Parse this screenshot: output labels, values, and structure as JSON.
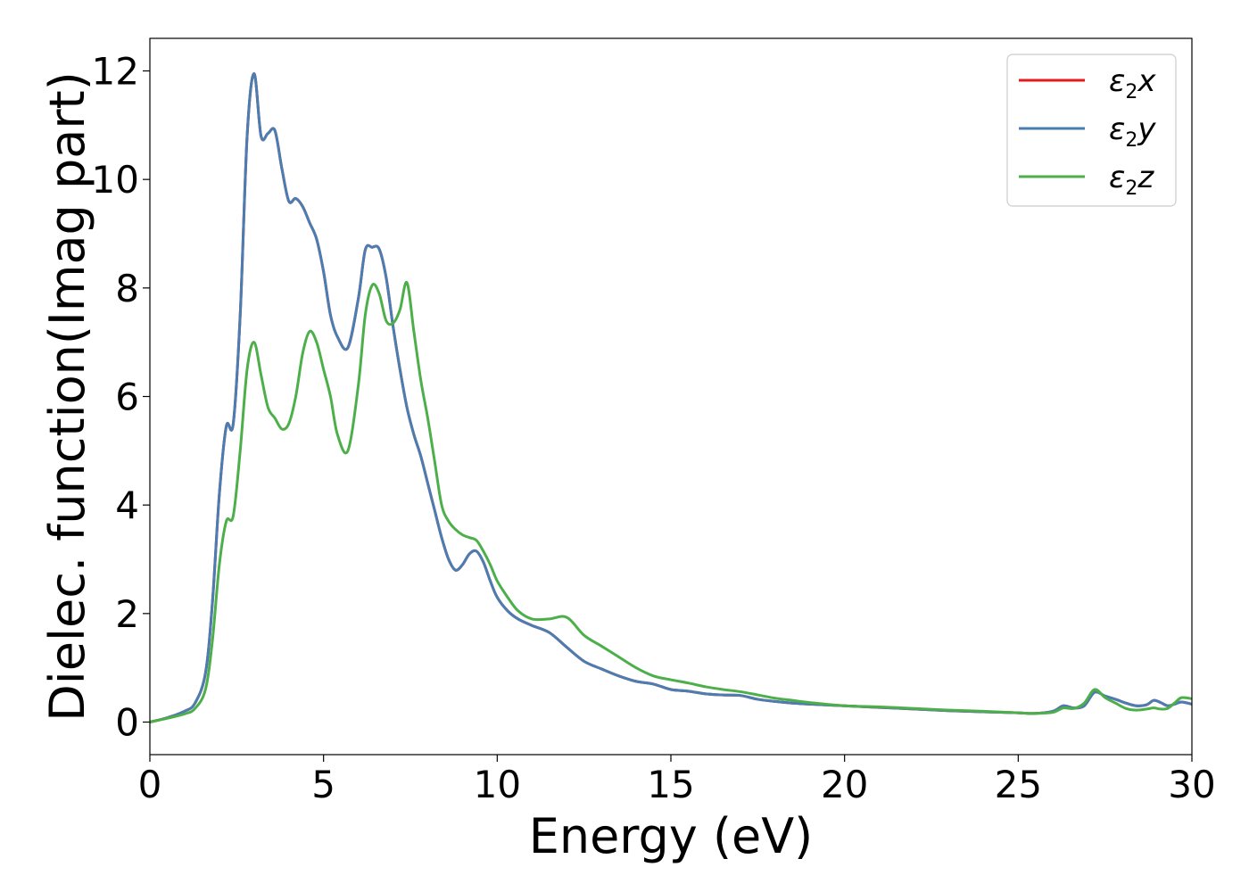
{
  "chart_data": {
    "type": "line",
    "xlabel": "Energy (eV)",
    "ylabel": "Dielec. function(Imag part)",
    "xlim": [
      0,
      30
    ],
    "ylim": [
      -0.6,
      12.6
    ],
    "xticks": [
      0,
      5,
      10,
      15,
      20,
      25,
      30
    ],
    "yticks": [
      0,
      2,
      4,
      6,
      8,
      10,
      12
    ],
    "grid": false,
    "legend_position": "top-right",
    "series": [
      {
        "name": "x",
        "legend_symbol": "ε",
        "legend_subscript": "2",
        "color": "#e41a1c",
        "x": [
          0,
          0.5,
          1.0,
          1.3,
          1.6,
          1.8,
          2.0,
          2.2,
          2.4,
          2.6,
          2.8,
          3.0,
          3.2,
          3.4,
          3.6,
          3.8,
          4.0,
          4.2,
          4.4,
          4.6,
          4.8,
          5.0,
          5.2,
          5.4,
          5.7,
          6.0,
          6.2,
          6.4,
          6.6,
          6.8,
          7.0,
          7.2,
          7.4,
          7.6,
          7.8,
          8.0,
          8.2,
          8.4,
          8.6,
          8.8,
          9.0,
          9.2,
          9.4,
          9.6,
          9.8,
          10.0,
          10.3,
          10.6,
          11.0,
          11.5,
          12.0,
          12.5,
          13.0,
          13.5,
          14.0,
          14.5,
          15.0,
          15.5,
          16.0,
          16.5,
          17.0,
          17.5,
          18.0,
          18.5,
          19.0,
          20.0,
          21.0,
          22.0,
          23.0,
          24.0,
          25.0,
          25.5,
          26.0,
          26.3,
          26.6,
          26.9,
          27.2,
          27.5,
          27.8,
          28.1,
          28.4,
          28.7,
          28.9,
          29.1,
          29.3,
          29.5,
          29.7,
          30.0
        ],
        "values": [
          0,
          0.08,
          0.2,
          0.35,
          0.9,
          2.2,
          4.2,
          5.45,
          5.5,
          7.5,
          10.8,
          11.95,
          10.8,
          10.85,
          10.9,
          10.2,
          9.6,
          9.65,
          9.5,
          9.2,
          8.9,
          8.3,
          7.5,
          7.1,
          6.9,
          7.8,
          8.7,
          8.75,
          8.72,
          8.2,
          7.3,
          6.5,
          5.8,
          5.3,
          4.9,
          4.4,
          3.9,
          3.4,
          3.0,
          2.8,
          2.9,
          3.1,
          3.15,
          2.95,
          2.6,
          2.3,
          2.05,
          1.9,
          1.78,
          1.65,
          1.38,
          1.12,
          0.98,
          0.85,
          0.75,
          0.7,
          0.6,
          0.57,
          0.52,
          0.5,
          0.49,
          0.42,
          0.38,
          0.35,
          0.33,
          0.3,
          0.27,
          0.24,
          0.21,
          0.19,
          0.17,
          0.16,
          0.2,
          0.3,
          0.26,
          0.3,
          0.55,
          0.48,
          0.42,
          0.35,
          0.3,
          0.32,
          0.4,
          0.36,
          0.3,
          0.33,
          0.37,
          0.33
        ]
      },
      {
        "name": "y",
        "legend_symbol": "ε",
        "legend_subscript": "2",
        "color": "#4a7db1",
        "x": [
          0,
          0.5,
          1.0,
          1.3,
          1.6,
          1.8,
          2.0,
          2.2,
          2.4,
          2.6,
          2.8,
          3.0,
          3.2,
          3.4,
          3.6,
          3.8,
          4.0,
          4.2,
          4.4,
          4.6,
          4.8,
          5.0,
          5.2,
          5.4,
          5.7,
          6.0,
          6.2,
          6.4,
          6.6,
          6.8,
          7.0,
          7.2,
          7.4,
          7.6,
          7.8,
          8.0,
          8.2,
          8.4,
          8.6,
          8.8,
          9.0,
          9.2,
          9.4,
          9.6,
          9.8,
          10.0,
          10.3,
          10.6,
          11.0,
          11.5,
          12.0,
          12.5,
          13.0,
          13.5,
          14.0,
          14.5,
          15.0,
          15.5,
          16.0,
          16.5,
          17.0,
          17.5,
          18.0,
          18.5,
          19.0,
          20.0,
          21.0,
          22.0,
          23.0,
          24.0,
          25.0,
          25.5,
          26.0,
          26.3,
          26.6,
          26.9,
          27.2,
          27.5,
          27.8,
          28.1,
          28.4,
          28.7,
          28.9,
          29.1,
          29.3,
          29.5,
          29.7,
          30.0
        ],
        "values": [
          0,
          0.08,
          0.2,
          0.35,
          0.9,
          2.2,
          4.2,
          5.45,
          5.5,
          7.5,
          10.8,
          11.95,
          10.8,
          10.85,
          10.9,
          10.2,
          9.6,
          9.65,
          9.5,
          9.2,
          8.9,
          8.3,
          7.5,
          7.1,
          6.9,
          7.8,
          8.7,
          8.75,
          8.72,
          8.2,
          7.3,
          6.5,
          5.8,
          5.3,
          4.9,
          4.4,
          3.9,
          3.4,
          3.0,
          2.8,
          2.9,
          3.1,
          3.15,
          2.95,
          2.6,
          2.3,
          2.05,
          1.9,
          1.78,
          1.65,
          1.38,
          1.12,
          0.98,
          0.85,
          0.75,
          0.7,
          0.6,
          0.57,
          0.52,
          0.5,
          0.49,
          0.42,
          0.38,
          0.35,
          0.33,
          0.3,
          0.27,
          0.24,
          0.21,
          0.19,
          0.17,
          0.16,
          0.2,
          0.3,
          0.26,
          0.3,
          0.55,
          0.48,
          0.42,
          0.35,
          0.3,
          0.32,
          0.4,
          0.36,
          0.3,
          0.33,
          0.37,
          0.33
        ]
      },
      {
        "name": "z",
        "legend_symbol": "ε",
        "legend_subscript": "2",
        "color": "#4daf4a",
        "x": [
          0,
          0.5,
          1.0,
          1.3,
          1.6,
          1.8,
          2.0,
          2.2,
          2.4,
          2.6,
          2.8,
          3.0,
          3.2,
          3.4,
          3.6,
          3.8,
          4.0,
          4.2,
          4.4,
          4.6,
          4.8,
          5.0,
          5.2,
          5.4,
          5.7,
          6.0,
          6.2,
          6.4,
          6.6,
          6.8,
          7.0,
          7.2,
          7.4,
          7.6,
          7.8,
          8.0,
          8.2,
          8.4,
          8.6,
          8.8,
          9.0,
          9.2,
          9.4,
          9.6,
          9.8,
          10.0,
          10.3,
          10.6,
          11.0,
          11.5,
          12.0,
          12.5,
          13.0,
          13.5,
          14.0,
          14.5,
          15.0,
          15.5,
          16.0,
          16.5,
          17.0,
          17.5,
          18.0,
          18.5,
          19.0,
          20.0,
          21.0,
          22.0,
          23.0,
          24.0,
          25.0,
          25.5,
          26.0,
          26.3,
          26.6,
          26.9,
          27.2,
          27.5,
          27.8,
          28.1,
          28.4,
          28.7,
          28.9,
          29.1,
          29.3,
          29.5,
          29.7,
          30.0
        ],
        "values": [
          0,
          0.07,
          0.15,
          0.25,
          0.6,
          1.5,
          2.9,
          3.7,
          3.8,
          5.0,
          6.5,
          7.0,
          6.4,
          5.8,
          5.6,
          5.4,
          5.5,
          6.0,
          6.8,
          7.2,
          7.0,
          6.5,
          6.0,
          5.3,
          5.0,
          6.2,
          7.5,
          8.05,
          7.9,
          7.4,
          7.35,
          7.6,
          8.1,
          7.2,
          6.3,
          5.6,
          4.8,
          4.0,
          3.7,
          3.55,
          3.45,
          3.4,
          3.35,
          3.15,
          2.9,
          2.6,
          2.3,
          2.05,
          1.9,
          1.9,
          1.93,
          1.6,
          1.4,
          1.2,
          1.0,
          0.85,
          0.78,
          0.72,
          0.65,
          0.6,
          0.56,
          0.5,
          0.44,
          0.4,
          0.36,
          0.3,
          0.28,
          0.25,
          0.22,
          0.2,
          0.17,
          0.16,
          0.18,
          0.26,
          0.25,
          0.35,
          0.6,
          0.45,
          0.35,
          0.25,
          0.22,
          0.24,
          0.26,
          0.24,
          0.25,
          0.35,
          0.45,
          0.43
        ]
      }
    ]
  }
}
